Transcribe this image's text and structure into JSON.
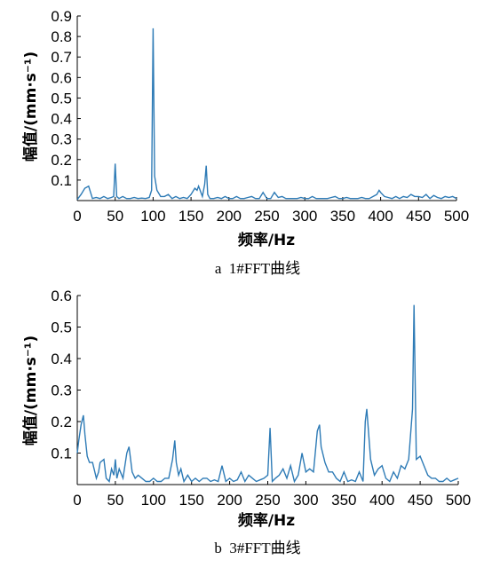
{
  "chart_data": [
    {
      "type": "line",
      "caption": "a  1#FFT曲线",
      "xlabel": "频率/Hz",
      "ylabel": "幅值/(mm·s⁻¹)",
      "xlim": [
        0,
        500
      ],
      "ylim": [
        0,
        0.9
      ],
      "xticks": [
        0,
        50,
        100,
        150,
        200,
        250,
        300,
        350,
        400,
        450,
        500
      ],
      "yticks": [
        0.1,
        0.2,
        0.3,
        0.4,
        0.5,
        0.6,
        0.7,
        0.8,
        0.9
      ],
      "grid": false,
      "color": "#2e7bb6",
      "series": [
        {
          "x": [
            0,
            5,
            10,
            15,
            20,
            25,
            30,
            35,
            40,
            45,
            48,
            50,
            52,
            55,
            60,
            65,
            70,
            75,
            80,
            85,
            90,
            95,
            98,
            100,
            102,
            105,
            110,
            115,
            120,
            125,
            130,
            135,
            140,
            145,
            150,
            155,
            158,
            160,
            165,
            168,
            170,
            172,
            175,
            180,
            185,
            190,
            195,
            200,
            205,
            210,
            215,
            220,
            225,
            230,
            235,
            240,
            245,
            250,
            255,
            260,
            265,
            270,
            275,
            280,
            285,
            290,
            295,
            300,
            305,
            310,
            315,
            320,
            325,
            330,
            335,
            340,
            345,
            350,
            355,
            360,
            365,
            370,
            375,
            380,
            385,
            390,
            395,
            398,
            400,
            405,
            410,
            415,
            420,
            425,
            430,
            435,
            440,
            445,
            450,
            455,
            460,
            465,
            470,
            475,
            480,
            485,
            490,
            495,
            500
          ],
          "y": [
            0.005,
            0.03,
            0.06,
            0.07,
            0.01,
            0.015,
            0.01,
            0.02,
            0.01,
            0.015,
            0.02,
            0.18,
            0.02,
            0.01,
            0.02,
            0.01,
            0.01,
            0.015,
            0.01,
            0.012,
            0.01,
            0.015,
            0.05,
            0.84,
            0.12,
            0.05,
            0.02,
            0.02,
            0.03,
            0.01,
            0.02,
            0.01,
            0.015,
            0.01,
            0.03,
            0.06,
            0.05,
            0.07,
            0.02,
            0.08,
            0.17,
            0.03,
            0.01,
            0.01,
            0.015,
            0.01,
            0.02,
            0.01,
            0.01,
            0.02,
            0.01,
            0.01,
            0.015,
            0.02,
            0.01,
            0.01,
            0.04,
            0.01,
            0.01,
            0.04,
            0.015,
            0.02,
            0.01,
            0.01,
            0.01,
            0.01,
            0.015,
            0.01,
            0.01,
            0.02,
            0.01,
            0.01,
            0.01,
            0.01,
            0.015,
            0.02,
            0.01,
            0.01,
            0.015,
            0.01,
            0.01,
            0.01,
            0.015,
            0.01,
            0.01,
            0.02,
            0.03,
            0.05,
            0.04,
            0.02,
            0.015,
            0.01,
            0.02,
            0.01,
            0.02,
            0.015,
            0.03,
            0.02,
            0.02,
            0.015,
            0.03,
            0.01,
            0.025,
            0.015,
            0.01,
            0.02,
            0.015,
            0.02,
            0.01
          ]
        }
      ]
    },
    {
      "type": "line",
      "caption": "b  3#FFT曲线",
      "xlabel": "频率/Hz",
      "ylabel": "幅值/(mm·s⁻¹)",
      "xlim": [
        0,
        500
      ],
      "ylim": [
        0,
        0.6
      ],
      "xticks": [
        0,
        50,
        100,
        150,
        200,
        250,
        300,
        350,
        400,
        450,
        500
      ],
      "yticks": [
        0.1,
        0.2,
        0.3,
        0.4,
        0.5,
        0.6
      ],
      "grid": false,
      "color": "#2e7bb6",
      "series": [
        {
          "x": [
            0,
            2,
            5,
            8,
            10,
            13,
            16,
            20,
            25,
            28,
            30,
            35,
            38,
            42,
            45,
            48,
            50,
            52,
            55,
            60,
            65,
            68,
            72,
            76,
            80,
            85,
            90,
            95,
            100,
            105,
            110,
            115,
            120,
            125,
            128,
            130,
            133,
            136,
            140,
            145,
            150,
            155,
            160,
            165,
            170,
            175,
            180,
            185,
            190,
            195,
            200,
            205,
            210,
            215,
            220,
            225,
            230,
            235,
            240,
            245,
            250,
            253,
            256,
            260,
            265,
            270,
            275,
            280,
            285,
            290,
            295,
            300,
            305,
            310,
            315,
            318,
            320,
            325,
            330,
            335,
            340,
            345,
            350,
            355,
            360,
            365,
            370,
            375,
            378,
            380,
            385,
            390,
            395,
            400,
            405,
            410,
            415,
            420,
            425,
            430,
            435,
            440,
            442,
            445,
            450,
            455,
            460,
            465,
            470,
            475,
            480,
            485,
            490,
            495,
            500
          ],
          "y": [
            0.1,
            0.14,
            0.19,
            0.22,
            0.16,
            0.09,
            0.07,
            0.07,
            0.02,
            0.04,
            0.07,
            0.08,
            0.02,
            0.01,
            0.05,
            0.03,
            0.08,
            0.02,
            0.05,
            0.02,
            0.1,
            0.12,
            0.04,
            0.02,
            0.03,
            0.02,
            0.01,
            0.01,
            0.02,
            0.01,
            0.01,
            0.02,
            0.02,
            0.08,
            0.14,
            0.07,
            0.03,
            0.05,
            0.01,
            0.03,
            0.01,
            0.02,
            0.01,
            0.02,
            0.02,
            0.01,
            0.015,
            0.01,
            0.06,
            0.01,
            0.02,
            0.01,
            0.015,
            0.04,
            0.01,
            0.03,
            0.02,
            0.01,
            0.015,
            0.02,
            0.03,
            0.18,
            0.01,
            0.02,
            0.03,
            0.05,
            0.02,
            0.06,
            0.01,
            0.03,
            0.1,
            0.04,
            0.05,
            0.04,
            0.17,
            0.19,
            0.12,
            0.07,
            0.04,
            0.04,
            0.02,
            0.01,
            0.04,
            0.01,
            0.015,
            0.01,
            0.04,
            0.01,
            0.2,
            0.24,
            0.08,
            0.03,
            0.05,
            0.06,
            0.02,
            0.01,
            0.04,
            0.02,
            0.06,
            0.05,
            0.08,
            0.24,
            0.57,
            0.08,
            0.09,
            0.06,
            0.03,
            0.02,
            0.02,
            0.01,
            0.01,
            0.02,
            0.01,
            0.015,
            0.02
          ]
        }
      ]
    }
  ]
}
